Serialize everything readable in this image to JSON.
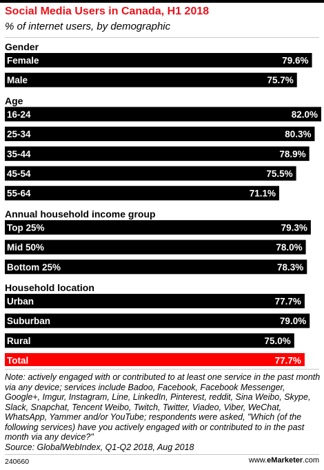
{
  "header": {
    "title": "Social Media Users in Canada, H1 2018",
    "subtitle": "% of internet users, by demographic"
  },
  "chart_data": {
    "type": "bar",
    "orientation": "horizontal",
    "title": "Social Media Users in Canada, H1 2018",
    "subtitle": "% of internet users, by demographic",
    "unit": "%",
    "xlim": [
      0,
      82
    ],
    "grid": false,
    "legend": "none",
    "groups": [
      {
        "name": "Gender",
        "items": [
          {
            "label": "Female",
            "value": 79.6
          },
          {
            "label": "Male",
            "value": 75.7
          }
        ]
      },
      {
        "name": "Age",
        "items": [
          {
            "label": "16-24",
            "value": 82.0
          },
          {
            "label": "25-34",
            "value": 80.3
          },
          {
            "label": "35-44",
            "value": 78.9
          },
          {
            "label": "45-54",
            "value": 75.5
          },
          {
            "label": "55-64",
            "value": 71.1
          }
        ]
      },
      {
        "name": "Annual household income group",
        "items": [
          {
            "label": "Top 25%",
            "value": 79.3
          },
          {
            "label": "Mid 50%",
            "value": 78.0
          },
          {
            "label": "Bottom 25%",
            "value": 78.3
          }
        ]
      },
      {
        "name": "Household location",
        "items": [
          {
            "label": "Urban",
            "value": 77.7
          },
          {
            "label": "Suburban",
            "value": 79.0
          },
          {
            "label": "Rural",
            "value": 75.0
          },
          {
            "label": "Total",
            "value": 77.7,
            "highlight": true
          }
        ]
      }
    ],
    "colors": {
      "bar": "#000000",
      "highlight": "#ff0000",
      "bar_text": "#ffffff"
    }
  },
  "note": "Note: actively engaged with or contributed to at least one service in the past month via any device; services include Badoo, Facebook, Facebook Messenger, Google+, Imgur, Instagram, Line, LinkedIn, Pinterest, reddit, Sina Weibo, Skype, Slack, Snapchat, Tencent Weibo, Twitch, Twitter, Viadeo, Viber, WeChat, WhatsApp, Yammer and/or YouTube; respondents were asked, \"Which (of the following services) have you actively engaged with or contributed to in the past month via any device?\"",
  "source": "Source: GlobalWebIndex, Q1-Q2 2018, Aug 2018",
  "footer": {
    "chart_id": "240660",
    "brand_prefix": "www.",
    "brand_name": "eMarketer",
    "brand_suffix": ".com"
  }
}
